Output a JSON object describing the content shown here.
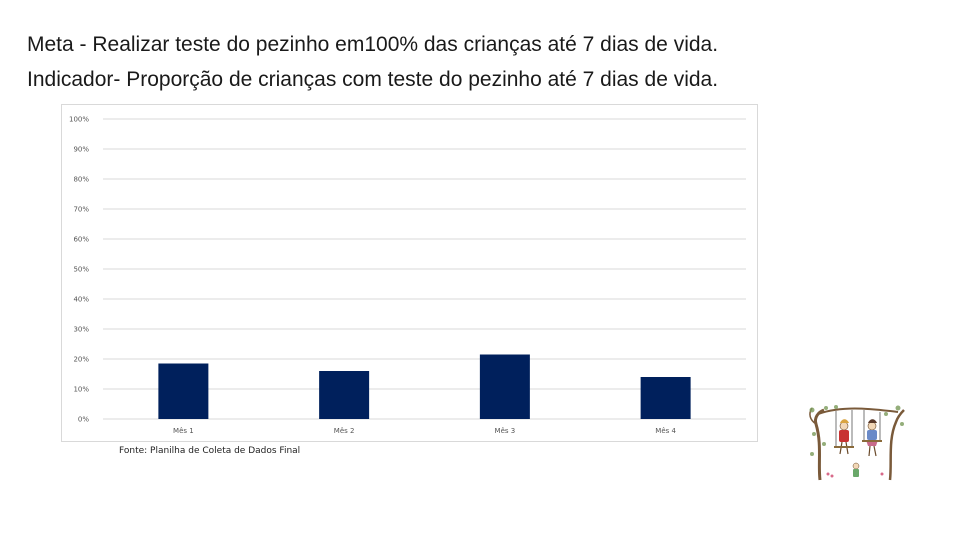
{
  "slide": {
    "meta_text": "Meta - Realizar teste do pezinho em100% das crianças até 7 dias de vida.",
    "indicator_text": "Indicador- Proporção de crianças com teste do pezinho até 7 dias de vida.",
    "source_note": "Fonte: Planilha de Coleta de Dados Final"
  },
  "chart_data": {
    "type": "bar",
    "title": "",
    "xlabel": "",
    "ylabel": "",
    "categories": [
      "Mês 1",
      "Mês 2",
      "Mês 3",
      "Mês 4"
    ],
    "series": [
      {
        "values": [
          18.5,
          16,
          21.5,
          14
        ]
      }
    ],
    "ylim": [
      0,
      100
    ],
    "yticks": [
      0,
      10,
      20,
      30,
      40,
      50,
      60,
      70,
      80,
      90,
      100
    ],
    "ytick_labels": [
      "0%",
      "10%",
      "20%",
      "30%",
      "40%",
      "50%",
      "60%",
      "70%",
      "80%",
      "90%",
      "100%"
    ],
    "grid": true,
    "legend": "none",
    "bar_color": "#00205c",
    "grid_color": "#d9d9d9"
  },
  "illustration": {
    "icon": "children-swing-clipart-icon"
  }
}
